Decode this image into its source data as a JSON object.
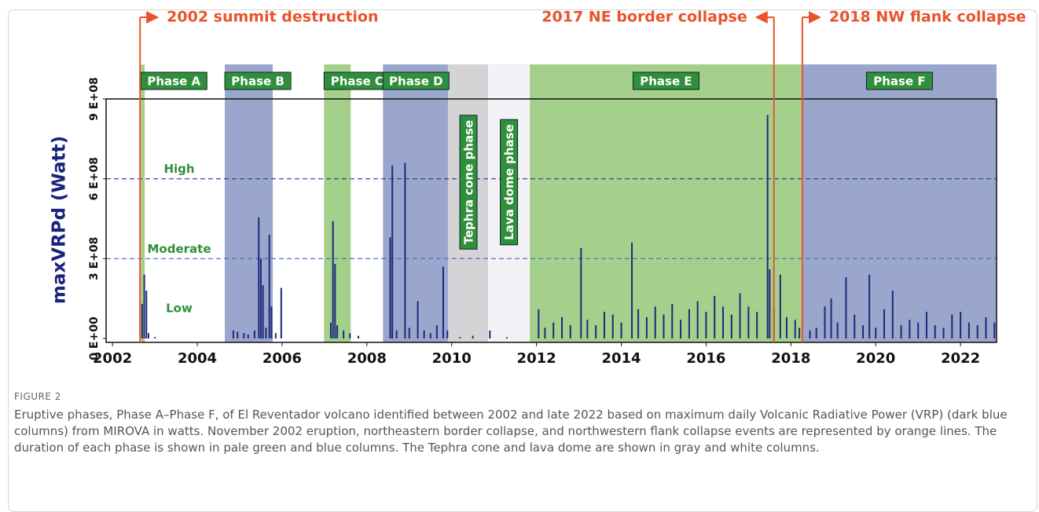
{
  "chart_data": {
    "type": "bar",
    "y_label": "maxVRPd (Watt)",
    "xlim": [
      2001.85,
      2022.85
    ],
    "xticks": [
      2002,
      2004,
      2006,
      2008,
      2010,
      2012,
      2014,
      2016,
      2018,
      2020,
      2022
    ],
    "ylim": [
      0,
      900000000.0
    ],
    "yticks": [
      {
        "value": 0,
        "label": "0 E+00"
      },
      {
        "value": 300000000.0,
        "label": "3 E+08"
      },
      {
        "value": 600000000.0,
        "label": "6 E+08"
      },
      {
        "value": 900000000.0,
        "label": "9 E+08"
      }
    ],
    "color": "#1b2a7a",
    "phases": [
      {
        "label": "Phase A",
        "start": 2002.67,
        "end": 2002.76,
        "color": "#a5d08c",
        "style": "box"
      },
      {
        "label": "Phase B",
        "start": 2004.65,
        "end": 2005.78,
        "color": "#9ba6cc",
        "style": "box"
      },
      {
        "label": "Phase C",
        "start": 2006.99,
        "end": 2007.62,
        "color": "#a5d08c",
        "style": "box"
      },
      {
        "label": "Phase D",
        "start": 2008.38,
        "end": 2009.92,
        "color": "#9ba6cc",
        "style": "box"
      },
      {
        "label": "Tephra cone phase",
        "start": 2009.93,
        "end": 2010.86,
        "color": "#d4d4d6",
        "style": "vertical"
      },
      {
        "label": "Lava dome phase",
        "start": 2010.88,
        "end": 2011.82,
        "color": "#f1f1f6",
        "style": "vertical"
      },
      {
        "label": "Phase E",
        "start": 2011.84,
        "end": 2018.27,
        "color": "#a5d08c",
        "style": "box"
      },
      {
        "label": "Phase F",
        "start": 2018.27,
        "end": 2022.85,
        "color": "#9ba6cc",
        "style": "box"
      }
    ],
    "events": [
      {
        "label": "2002 summit destruction",
        "x": 2002.65,
        "side": "right"
      },
      {
        "label": "2017 NE border collapse",
        "x": 2017.6,
        "side": "left"
      },
      {
        "label": "2018 NW flank collapse",
        "x": 2018.27,
        "side": "right"
      }
    ],
    "thresholds": [
      {
        "label": "High",
        "value": 600000000.0,
        "color": "#2b3a8c"
      },
      {
        "label": "Moderate",
        "value": 300000000.0,
        "color": "#3d6fb0"
      }
    ],
    "low_label": "Low",
    "series": [
      {
        "name": "maxVRPd",
        "color": "#1b2a7a",
        "x": [
          2002.7,
          2002.75,
          2002.8,
          2002.85,
          2003.0,
          2004.85,
          2004.95,
          2005.1,
          2005.2,
          2005.35,
          2005.45,
          2005.5,
          2005.55,
          2005.62,
          2005.7,
          2005.75,
          2005.85,
          2005.98,
          2007.15,
          2007.2,
          2007.25,
          2007.3,
          2007.45,
          2007.6,
          2007.8,
          2008.55,
          2008.6,
          2008.7,
          2008.9,
          2009.0,
          2009.2,
          2009.35,
          2009.5,
          2009.65,
          2009.8,
          2009.9,
          2010.2,
          2010.5,
          2010.9,
          2011.3,
          2012.05,
          2012.2,
          2012.4,
          2012.6,
          2012.8,
          2013.05,
          2013.2,
          2013.4,
          2013.6,
          2013.8,
          2014.0,
          2014.25,
          2014.4,
          2014.6,
          2014.8,
          2015.0,
          2015.2,
          2015.4,
          2015.6,
          2015.8,
          2016.0,
          2016.2,
          2016.4,
          2016.6,
          2016.8,
          2017.0,
          2017.2,
          2017.45,
          2017.5,
          2017.6,
          2017.75,
          2017.9,
          2018.1,
          2018.2,
          2018.45,
          2018.6,
          2018.8,
          2018.95,
          2019.1,
          2019.3,
          2019.5,
          2019.7,
          2019.85,
          2020.0,
          2020.2,
          2020.4,
          2020.6,
          2020.8,
          2021.0,
          2021.2,
          2021.4,
          2021.6,
          2021.8,
          2022.0,
          2022.2,
          2022.4,
          2022.6,
          2022.8
        ],
        "values": [
          130000000.0,
          240000000.0,
          180000000.0,
          20000000.0,
          5000000.0,
          30000000.0,
          25000000.0,
          20000000.0,
          15000000.0,
          30000000.0,
          455000000.0,
          300000000.0,
          200000000.0,
          40000000.0,
          390000000.0,
          120000000.0,
          20000000.0,
          190000000.0,
          60000000.0,
          440000000.0,
          280000000.0,
          50000000.0,
          30000000.0,
          20000000.0,
          10000000.0,
          380000000.0,
          650000000.0,
          30000000.0,
          660000000.0,
          40000000.0,
          140000000.0,
          30000000.0,
          20000000.0,
          50000000.0,
          270000000.0,
          30000000.0,
          5000000.0,
          10000000.0,
          30000000.0,
          5000000.0,
          110000000.0,
          40000000.0,
          60000000.0,
          80000000.0,
          50000000.0,
          340000000.0,
          70000000.0,
          50000000.0,
          100000000.0,
          90000000.0,
          60000000.0,
          360000000.0,
          110000000.0,
          80000000.0,
          120000000.0,
          90000000.0,
          130000000.0,
          70000000.0,
          110000000.0,
          140000000.0,
          100000000.0,
          160000000.0,
          120000000.0,
          90000000.0,
          170000000.0,
          120000000.0,
          100000000.0,
          840000000.0,
          260000000.0,
          110000000.0,
          240000000.0,
          80000000.0,
          70000000.0,
          40000000.0,
          30000000.0,
          40000000.0,
          120000000.0,
          150000000.0,
          60000000.0,
          230000000.0,
          90000000.0,
          50000000.0,
          240000000.0,
          40000000.0,
          110000000.0,
          180000000.0,
          50000000.0,
          70000000.0,
          60000000.0,
          100000000.0,
          50000000.0,
          40000000.0,
          90000000.0,
          100000000.0,
          60000000.0,
          50000000.0,
          80000000.0,
          60000000.0
        ]
      }
    ]
  },
  "caption": {
    "label": "FIGURE 2",
    "text": "Eruptive phases, Phase A–Phase F, of El Reventador volcano identified between 2002 and late 2022 based on maximum daily Volcanic Radiative Power (VRP) (dark blue columns) from MIROVA in watts. November 2002 eruption, northeastern border collapse, and northwestern flank collapse events are represented by orange lines. The duration of each phase is shown in pale green and blue columns. The Tephra cone and lava dome are shown in gray and white columns."
  }
}
